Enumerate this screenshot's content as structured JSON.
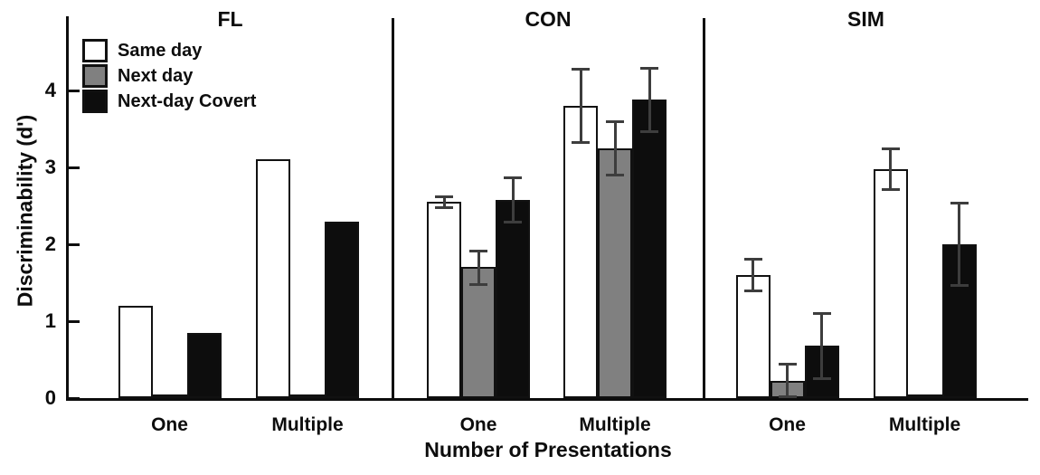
{
  "chart_data": {
    "type": "bar",
    "title": "",
    "xlabel": "Number of Presentations",
    "ylabel": "Discriminability (d')",
    "ylim": [
      0,
      4.7
    ],
    "yticks": [
      0,
      1,
      2,
      3,
      4
    ],
    "grid": false,
    "legend_position": "top-left",
    "categories": [
      "One",
      "Multiple"
    ],
    "series": [
      "Same day",
      "Next day",
      "Next-day Covert"
    ],
    "series_keys": [
      "same-day",
      "next-day",
      "next-day-covert"
    ],
    "series_colors": [
      "#ffffff",
      "#808080",
      "#0d0d0d"
    ],
    "error_bar_color": "#3d3d3d",
    "panels": [
      {
        "title": "FL",
        "groups": [
          {
            "category": "One",
            "values": [
              1.2,
              0.05,
              0.85
            ],
            "errors": [
              null,
              null,
              null
            ]
          },
          {
            "category": "Multiple",
            "values": [
              3.1,
              0.05,
              2.3
            ],
            "errors": [
              null,
              null,
              null
            ]
          }
        ]
      },
      {
        "title": "CON",
        "groups": [
          {
            "category": "One",
            "values": [
              2.55,
              1.7,
              2.58
            ],
            "errors": [
              0.07,
              0.22,
              0.29
            ]
          },
          {
            "category": "Multiple",
            "values": [
              3.8,
              3.25,
              3.88
            ],
            "errors": [
              0.48,
              0.35,
              0.41
            ]
          }
        ]
      },
      {
        "title": "SIM",
        "groups": [
          {
            "category": "One",
            "values": [
              1.6,
              0.22,
              0.68
            ],
            "errors": [
              0.21,
              0.23,
              0.43
            ]
          },
          {
            "category": "Multiple",
            "values": [
              2.98,
              0.05,
              2.0
            ],
            "errors": [
              0.27,
              null,
              0.54
            ]
          }
        ]
      }
    ],
    "legend": [
      "Same day",
      "Next day",
      "Next-day Covert"
    ]
  }
}
